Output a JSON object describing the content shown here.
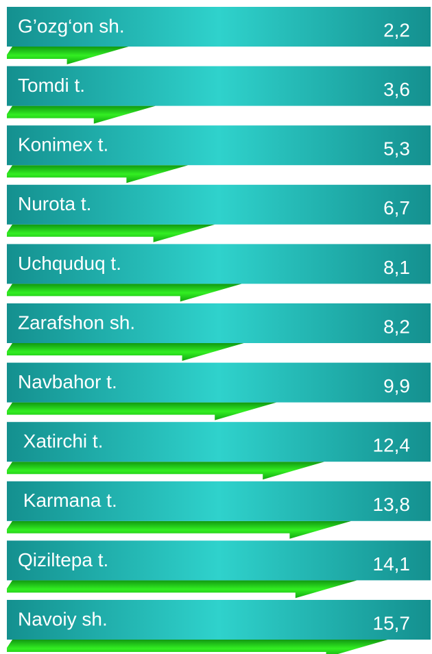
{
  "chart_data": {
    "type": "bar",
    "categories": [
      "G’ozg‘on sh.",
      "Tomdi t.",
      "Konimex t.",
      "Nurota t.",
      "Uchquduq t.",
      "Zarafshon sh.",
      "Navbahor t.",
      " Xatirchi t.",
      " Karmana t.",
      "Qiziltepa t.",
      "Navoiy sh."
    ],
    "values": [
      2.2,
      3.6,
      5.3,
      6.7,
      8.1,
      8.2,
      9.9,
      12.4,
      13.8,
      14.1,
      15.7
    ],
    "value_labels": [
      "2,2",
      "3,6",
      "5,3",
      "6,7",
      "8,1",
      "8,2",
      "9,9",
      "12,4",
      "13,8",
      "14,1",
      "15,7"
    ],
    "color": "#22cc11"
  }
}
